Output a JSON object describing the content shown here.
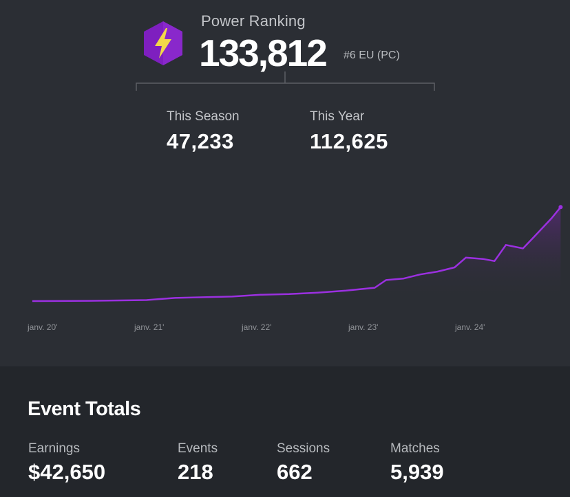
{
  "power_ranking": {
    "label": "Power Ranking",
    "value": "133,812",
    "rank": "#6 EU (PC)",
    "icon": "lightning-hexagon-icon"
  },
  "stats": [
    {
      "label": "This Season",
      "value": "47,233"
    },
    {
      "label": "This Year",
      "value": "112,625"
    }
  ],
  "chart_data": {
    "type": "area",
    "x_ticks": [
      "janv. 20'",
      "janv. 21'",
      "janv. 22'",
      "janv. 23'",
      "janv. 24'"
    ],
    "x": [
      2020.0,
      2020.5,
      2021.0,
      2021.25,
      2021.5,
      2021.75,
      2022.0,
      2022.25,
      2022.5,
      2022.75,
      2023.0,
      2023.1,
      2023.25,
      2023.4,
      2023.55,
      2023.7,
      2023.8,
      2023.95,
      2024.05,
      2024.15,
      2024.3,
      2024.4,
      2024.55,
      2024.63
    ],
    "y": [
      0,
      400,
      1500,
      4500,
      5500,
      6500,
      9000,
      10000,
      12000,
      15000,
      19000,
      30000,
      32000,
      38000,
      42000,
      48000,
      62000,
      60000,
      57000,
      80000,
      75000,
      92000,
      118000,
      133812
    ],
    "ylim": [
      0,
      140000
    ],
    "line_color": "#9b30e0",
    "fill_color": "#5a2a7a",
    "grid": false
  },
  "event_totals": {
    "title": "Event Totals",
    "items": [
      {
        "label": "Earnings",
        "value": "$42,650"
      },
      {
        "label": "Events",
        "value": "218"
      },
      {
        "label": "Sessions",
        "value": "662"
      },
      {
        "label": "Matches",
        "value": "5,939"
      }
    ]
  },
  "colors": {
    "background": "#2b2e34",
    "bottom_background": "#23262b",
    "accent_purple": "#9b30e0",
    "icon_purple": "#7e1fbf",
    "icon_yellow": "#f3d848"
  }
}
